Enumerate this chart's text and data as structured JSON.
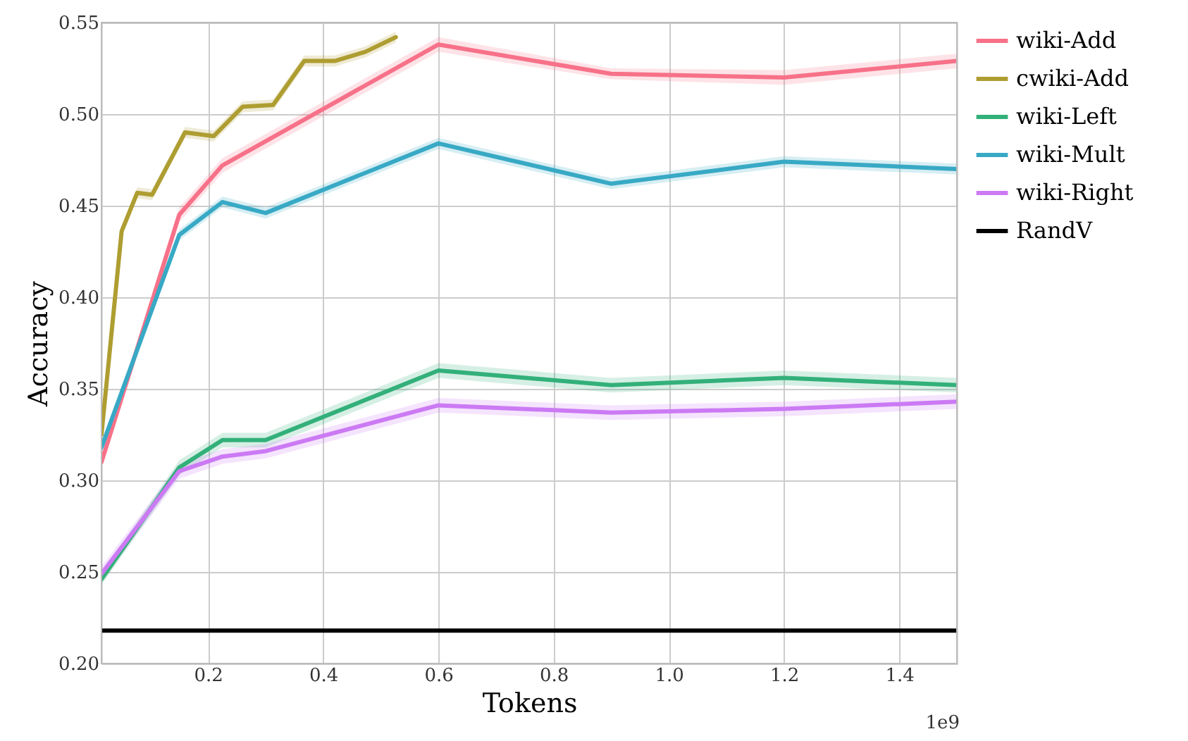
{
  "chart_data": {
    "type": "line",
    "xlabel": "Tokens",
    "ylabel": "Accuracy",
    "annotations": [
      "1e9"
    ],
    "xlim": [
      0.015,
      1.5
    ],
    "ylim": [
      0.2,
      0.55
    ],
    "xticks": [
      0.2,
      0.4,
      0.6,
      0.8,
      {
        "value": 1,
        "label": "1.0"
      },
      1.2,
      1.4
    ],
    "yticks": [
      {
        "value": 0.2,
        "label": "0.20"
      },
      {
        "value": 0.25,
        "label": "0.25"
      },
      {
        "value": 0.3,
        "label": "0.30"
      },
      {
        "value": 0.35,
        "label": "0.35"
      },
      {
        "value": 0.4,
        "label": "0.40"
      },
      {
        "value": 0.45,
        "label": "0.45"
      },
      {
        "value": 0.5,
        "label": "0.50"
      },
      {
        "value": 0.55,
        "label": "0.55"
      }
    ],
    "grid": true,
    "legend": "right",
    "series": [
      {
        "name": "wiki-Add",
        "color": "#f77189",
        "x": [
          0.015,
          0.15,
          0.225,
          0.6,
          0.9,
          1.2,
          1.5
        ],
        "values": [
          0.31,
          0.445,
          0.472,
          0.538,
          0.522,
          0.52,
          0.529
        ],
        "lower": [
          0.307,
          0.441,
          0.468,
          0.534,
          0.519,
          0.516,
          0.525
        ],
        "upper": [
          0.313,
          0.449,
          0.476,
          0.542,
          0.525,
          0.524,
          0.533
        ]
      },
      {
        "name": "cwiki-Add",
        "color": "#ae9d31",
        "x": [
          0.015,
          0.05,
          0.077,
          0.103,
          0.16,
          0.21,
          0.26,
          0.313,
          0.367,
          0.42,
          0.473,
          0.526
        ],
        "values": [
          0.325,
          0.436,
          0.457,
          0.456,
          0.49,
          0.488,
          0.504,
          0.505,
          0.529,
          0.529,
          0.534,
          0.542
        ],
        "lower": [
          0.322,
          0.433,
          0.454,
          0.453,
          0.487,
          0.485,
          0.501,
          0.502,
          0.526,
          0.526,
          0.531,
          0.539
        ],
        "upper": [
          0.328,
          0.439,
          0.46,
          0.459,
          0.493,
          0.491,
          0.507,
          0.508,
          0.532,
          0.532,
          0.537,
          0.545
        ]
      },
      {
        "name": "wiki-Left",
        "color": "#33b07a",
        "x": [
          0.015,
          0.15,
          0.225,
          0.3,
          0.6,
          0.9,
          1.2,
          1.5
        ],
        "values": [
          0.246,
          0.307,
          0.322,
          0.322,
          0.36,
          0.352,
          0.356,
          0.352
        ],
        "lower": [
          0.243,
          0.303,
          0.318,
          0.318,
          0.356,
          0.348,
          0.352,
          0.348
        ],
        "upper": [
          0.249,
          0.311,
          0.326,
          0.326,
          0.364,
          0.356,
          0.36,
          0.356
        ]
      },
      {
        "name": "wiki-Mult",
        "color": "#38a9c5",
        "x": [
          0.015,
          0.15,
          0.225,
          0.3,
          0.6,
          0.9,
          1.2,
          1.5
        ],
        "values": [
          0.318,
          0.434,
          0.452,
          0.446,
          0.484,
          0.462,
          0.474,
          0.47
        ],
        "lower": [
          0.315,
          0.431,
          0.449,
          0.443,
          0.481,
          0.459,
          0.471,
          0.467
        ],
        "upper": [
          0.321,
          0.437,
          0.455,
          0.449,
          0.487,
          0.465,
          0.477,
          0.473
        ]
      },
      {
        "name": "wiki-Right",
        "color": "#cc7af4",
        "x": [
          0.015,
          0.15,
          0.225,
          0.3,
          0.6,
          0.9,
          1.2,
          1.5
        ],
        "values": [
          0.249,
          0.305,
          0.313,
          0.316,
          0.341,
          0.337,
          0.339,
          0.343
        ],
        "lower": [
          0.245,
          0.301,
          0.309,
          0.312,
          0.337,
          0.333,
          0.335,
          0.339
        ],
        "upper": [
          0.253,
          0.309,
          0.317,
          0.32,
          0.345,
          0.341,
          0.343,
          0.347
        ]
      },
      {
        "name": "RandV",
        "color": "#000000",
        "x": [
          0.015,
          1.5
        ],
        "values": [
          0.218,
          0.218
        ]
      }
    ]
  }
}
